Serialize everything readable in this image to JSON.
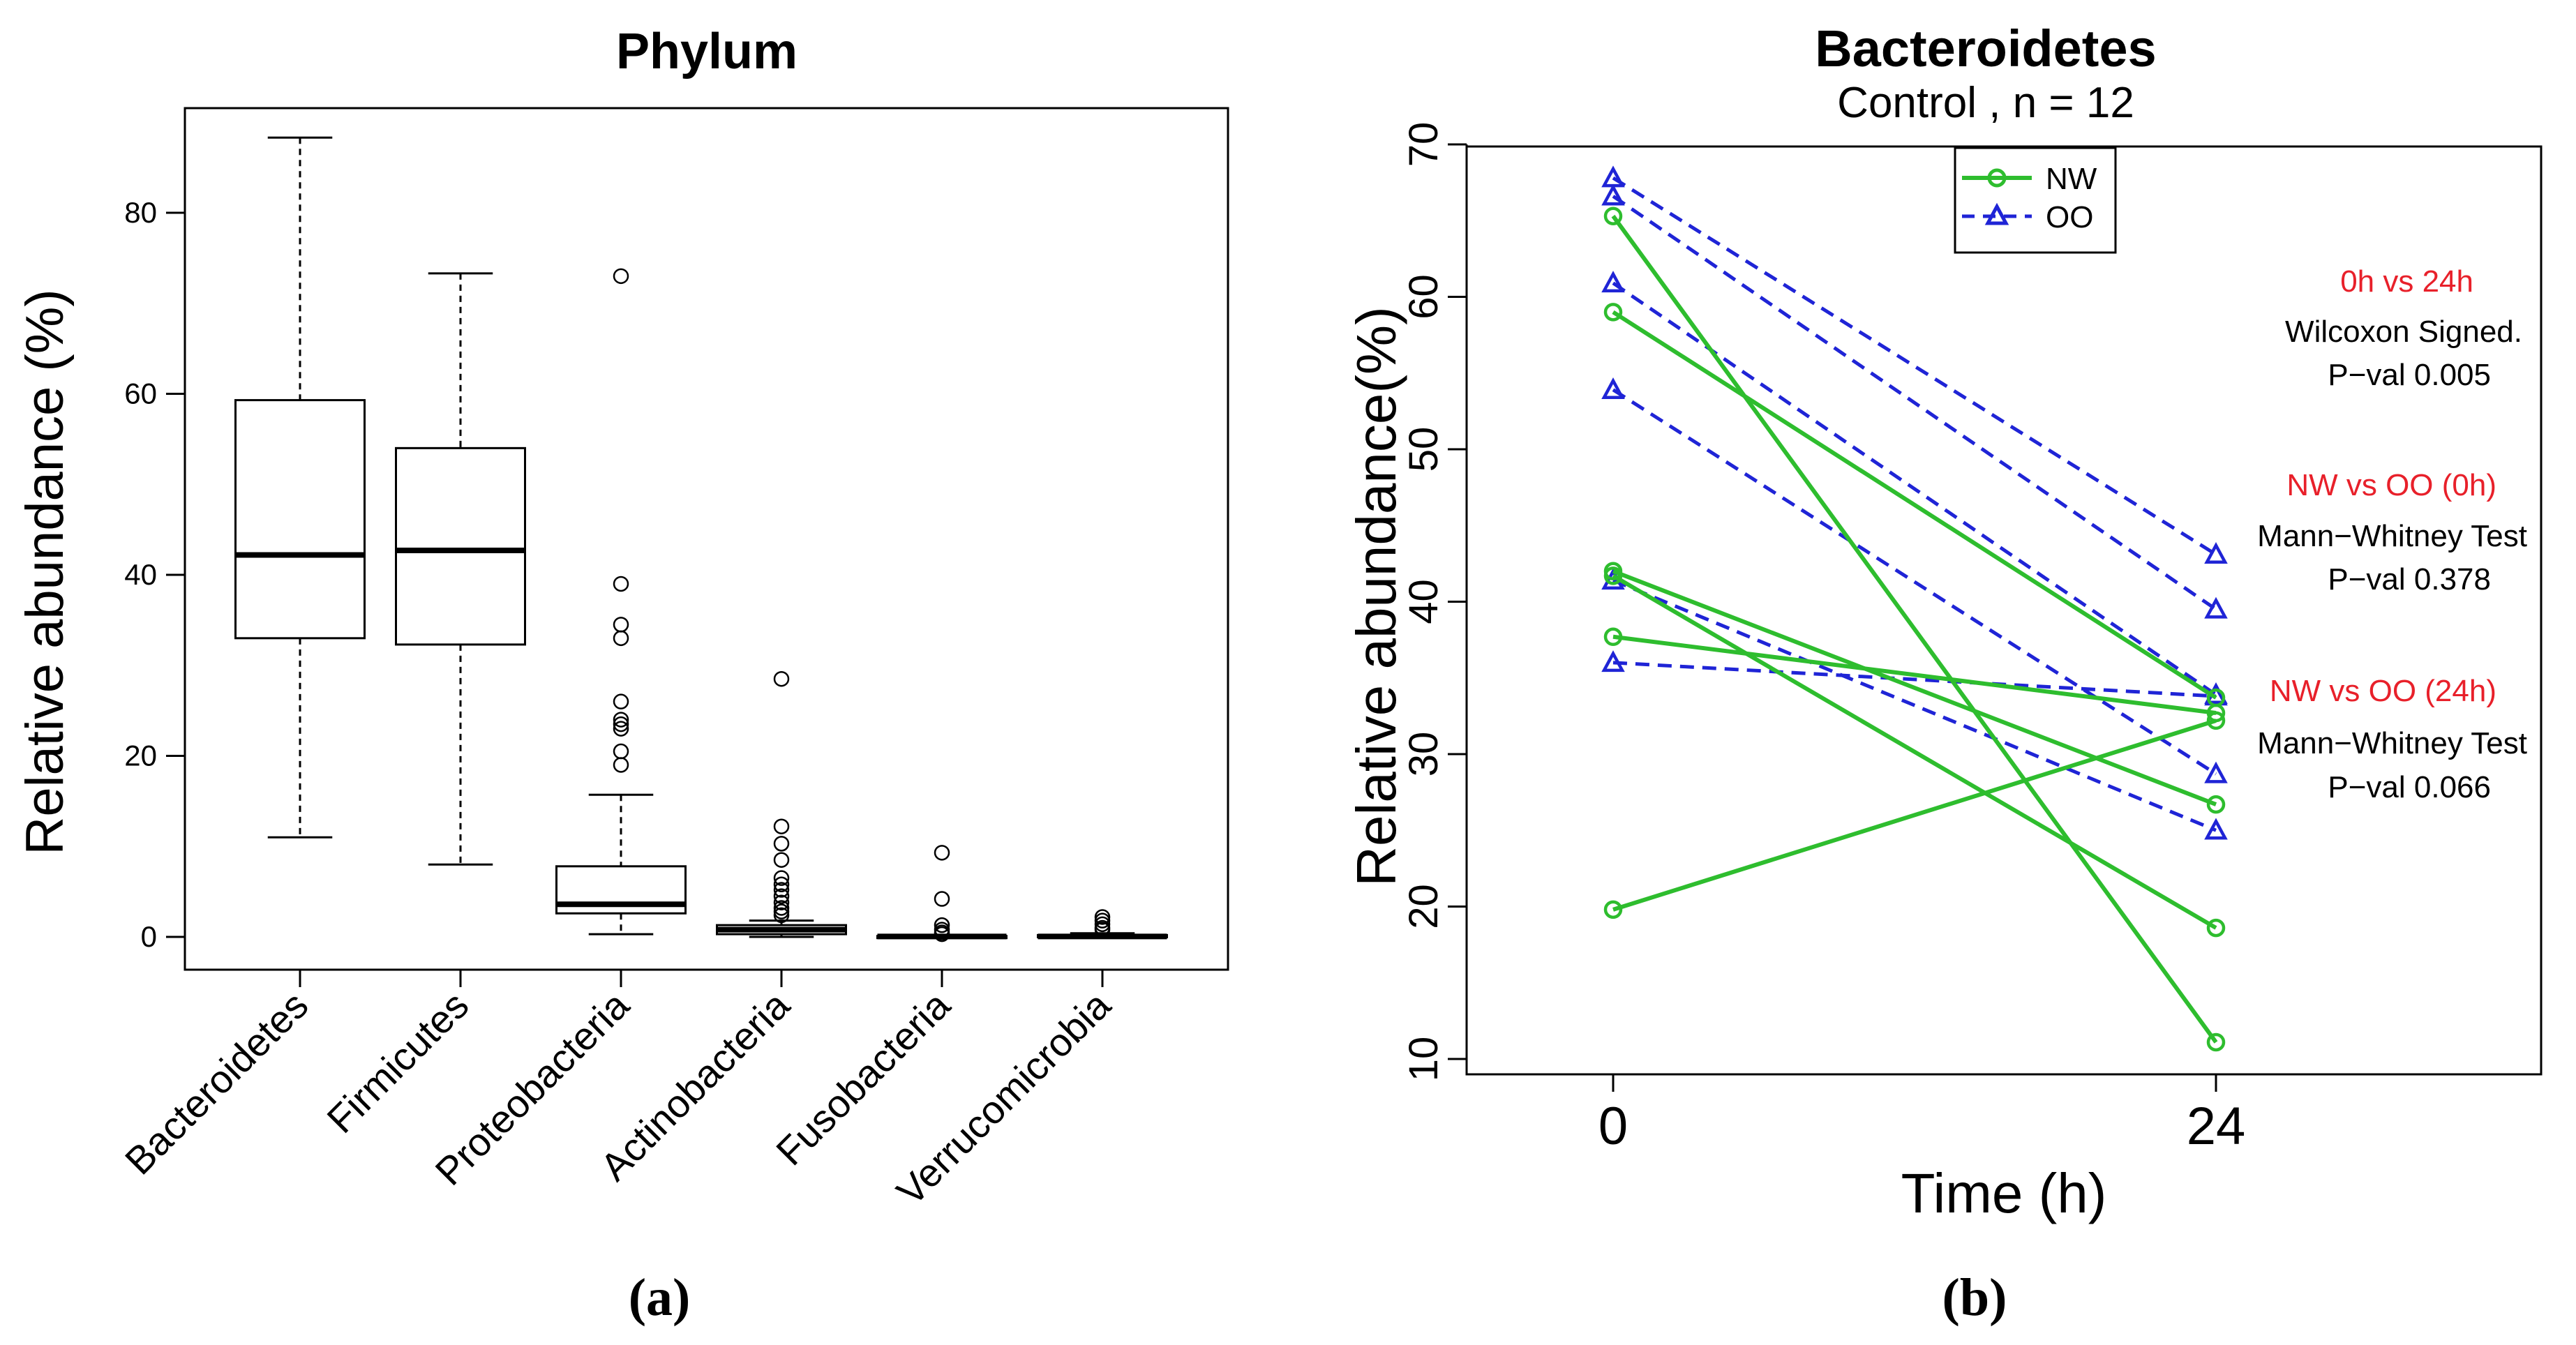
{
  "chart_data": [
    {
      "type": "boxplot",
      "panel_label": "(a)",
      "title": "Phylum",
      "xlabel": "",
      "ylabel": "Relative abundance (%)",
      "ylim": [
        0,
        90
      ],
      "yticks": [
        0,
        20,
        40,
        60,
        80
      ],
      "categories": [
        "Bacteroidetes",
        "Firmicutes",
        "Proteobacteria",
        "Actinobacteria",
        "Fusobacteria",
        "Verrucomicrobia"
      ],
      "boxes": [
        {
          "category": "Bacteroidetes",
          "min": 11,
          "q1": 33,
          "median": 42.2,
          "q3": 59.3,
          "max": 88.3,
          "outliers": []
        },
        {
          "category": "Firmicutes",
          "min": 8,
          "q1": 32.3,
          "median": 42.7,
          "q3": 54,
          "max": 73.3,
          "outliers": []
        },
        {
          "category": "Proteobacteria",
          "min": 0.3,
          "q1": 2.6,
          "median": 3.6,
          "q3": 7.8,
          "max": 15.7,
          "outliers": [
            73,
            39,
            34.5,
            33,
            26,
            24,
            23.5,
            23,
            20.5,
            19
          ]
        },
        {
          "category": "Actinobacteria",
          "min": 0,
          "q1": 0.3,
          "median": 0.8,
          "q3": 1.3,
          "max": 1.8,
          "outliers": [
            28.5,
            12.2,
            10.3,
            8.5,
            6.5,
            5.8,
            5.2,
            4.5,
            3.8,
            3.2,
            2.8,
            2.4
          ]
        },
        {
          "category": "Fusobacteria",
          "min": 0,
          "q1": 0,
          "median": 0.05,
          "q3": 0.1,
          "max": 0.2,
          "outliers": [
            9.3,
            4.2,
            1.3,
            0.8,
            0.5,
            0.3
          ]
        },
        {
          "category": "Verrucomicrobia",
          "min": 0,
          "q1": 0,
          "median": 0.05,
          "q3": 0.2,
          "max": 0.4,
          "outliers": [
            2.2,
            1.8,
            1.4,
            1.0,
            0.8
          ]
        }
      ]
    },
    {
      "type": "line",
      "panel_label": "(b)",
      "title": "Bacteroidetes",
      "subtitle": "Control , n = 12",
      "xlabel": "Time (h)",
      "ylabel": "Relative abundance(%)",
      "x": [
        0,
        24
      ],
      "xticks": [
        "0",
        "24"
      ],
      "ylim": [
        10,
        70
      ],
      "yticks": [
        10,
        20,
        30,
        40,
        50,
        60,
        70
      ],
      "legend": [
        {
          "label": "NW",
          "color": "#2EBD2E",
          "style": "solid",
          "marker": "circle"
        },
        {
          "label": "OO",
          "color": "#1F24D6",
          "style": "dashed",
          "marker": "triangle"
        }
      ],
      "series": [
        {
          "name": "NW",
          "values": [
            65.3,
            11.1
          ]
        },
        {
          "name": "NW",
          "values": [
            59.0,
            33.7
          ]
        },
        {
          "name": "NW",
          "values": [
            42.0,
            26.7
          ]
        },
        {
          "name": "NW",
          "values": [
            41.7,
            18.6
          ]
        },
        {
          "name": "NW",
          "values": [
            37.7,
            32.7
          ]
        },
        {
          "name": "NW",
          "values": [
            19.8,
            32.2
          ]
        },
        {
          "name": "OO",
          "values": [
            67.8,
            43.1
          ]
        },
        {
          "name": "OO",
          "values": [
            66.6,
            39.5
          ]
        },
        {
          "name": "OO",
          "values": [
            60.9,
            33.9
          ]
        },
        {
          "name": "OO",
          "values": [
            53.9,
            28.7
          ]
        },
        {
          "name": "OO",
          "values": [
            41.4,
            25.0
          ]
        },
        {
          "name": "OO",
          "values": [
            36.0,
            33.8
          ]
        }
      ],
      "annotations": [
        {
          "heading": "0h vs 24h",
          "test": "Wilcoxon Signed.",
          "pval": "P−val 0.005"
        },
        {
          "heading": "NW vs OO (0h)",
          "test": "Mann−Whitney Test",
          "pval": "P−val 0.378"
        },
        {
          "heading": "NW vs OO (24h)",
          "test": "Mann−Whitney Test",
          "pval": "P−val 0.066"
        }
      ],
      "annotation_heading_color": "#E8202A"
    }
  ]
}
